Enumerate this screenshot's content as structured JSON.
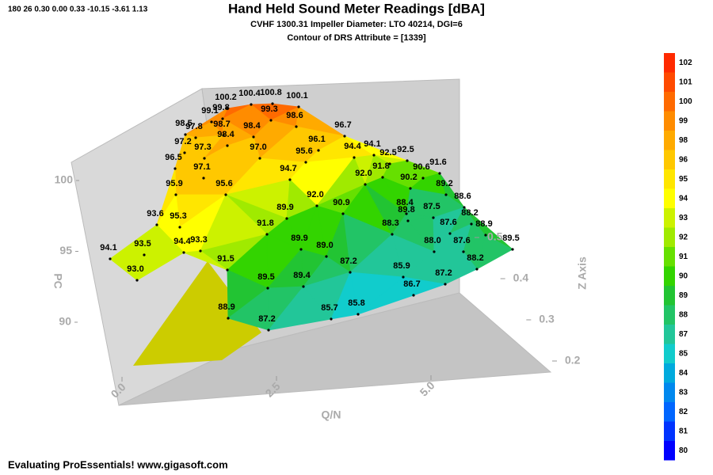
{
  "chart_data": {
    "type": "surface3d",
    "view_info": "180   26   0.30   0.00   0.33   -10.15   -3.61   1.13",
    "title": "Hand Held Sound Meter Readings [dBA]",
    "subtitles": [
      "CVHF 1300.31 Impeller Diameter: LTO 40214, DGI=6",
      "Contour of DRS Attribute = [1339]"
    ],
    "footer": "Evaluating ProEssentials! www.gigasoft.com",
    "x_label": "Q/N",
    "y_label": "PC",
    "z_label": "Z Axis",
    "xlim": [
      0,
      5
    ],
    "xticks": [
      {
        "value": 0,
        "label": "0.0"
      },
      {
        "value": 2.5,
        "label": "2.5"
      },
      {
        "value": 5,
        "label": "5.0"
      }
    ],
    "ylim": [
      90,
      100
    ],
    "yticks": [
      90,
      95,
      100
    ],
    "zlim": [
      0.2,
      0.5
    ],
    "zticks": [
      0.2,
      0.3,
      0.4,
      0.5
    ],
    "values": [
      100.2,
      100.4,
      100.8,
      100.1,
      99.1,
      99.8,
      99.3,
      98.6,
      98.5,
      97.8,
      98.7,
      98.4,
      96.7,
      97.2,
      98.4,
      96.1,
      94.1,
      97.3,
      97.0,
      95.6,
      94.4,
      92.5,
      92.5,
      96.5,
      94.7,
      91.8,
      90.6,
      91.6,
      97.1,
      92.0,
      90.2,
      89.2,
      95.9,
      95.6,
      92.0,
      88.6,
      93.6,
      89.9,
      90.9,
      88.4,
      87.5,
      88.2,
      95.3,
      89.8,
      87.6,
      88.9,
      91.8,
      88.3,
      94.1,
      89.9,
      88.0,
      87.6,
      89.5,
      93.5,
      94.4,
      93.3,
      89.0,
      87.2,
      88.2,
      91.5,
      85.9,
      93.0,
      89.5,
      89.4,
      87.2,
      86.7,
      88.9,
      85.7,
      85.8,
      87.2
    ],
    "value_labels": [
      "100.2",
      "100.4",
      "100.8",
      "100.1",
      "99.1",
      "99.8",
      "99.3",
      "98.6",
      "98.5",
      "97.8",
      "98.7",
      "98.4",
      "96.7",
      "97.2",
      "98.4",
      "96.1",
      "94.1",
      "97.3",
      "97.0",
      "95.6",
      "94.4",
      "92.5",
      "92.5",
      "96.5",
      "94.7",
      "91.8",
      "90.6",
      "91.6",
      "97.1",
      "92.0",
      "90.2",
      "89.2",
      "95.9",
      "95.6",
      "92.0",
      "88.6",
      "93.6",
      "89.9",
      "90.9",
      "88.4",
      "87.5",
      "88.2",
      "95.3",
      "89.8",
      "87.6",
      "88.9",
      "91.8",
      "88.3",
      "94.1",
      "89.9",
      "88.0",
      "87.6",
      "89.5",
      "93.5",
      "94.4",
      "93.3",
      "89.0",
      "87.2",
      "88.2",
      "91.5",
      "85.9",
      "93.0",
      "89.5",
      "89.4",
      "87.2",
      "86.7",
      "88.9",
      "85.7",
      "85.8",
      "87.2"
    ],
    "colorbar": {
      "ticks": [
        102,
        101,
        100,
        99,
        98,
        96,
        95,
        94,
        93,
        92,
        91,
        90,
        89,
        88,
        87,
        85,
        84,
        83,
        82,
        81,
        80
      ],
      "colors": [
        "#ff2a00",
        "#ff4a00",
        "#ff6a00",
        "#ff8c00",
        "#ffaa00",
        "#ffc800",
        "#ffe600",
        "#ffff00",
        "#ccf200",
        "#a0ea00",
        "#66e000",
        "#33d400",
        "#22c433",
        "#22c466",
        "#22c699",
        "#11cccc",
        "#00aadd",
        "#0088ee",
        "#0066ff",
        "#0033ff",
        "#0000ff"
      ]
    }
  }
}
